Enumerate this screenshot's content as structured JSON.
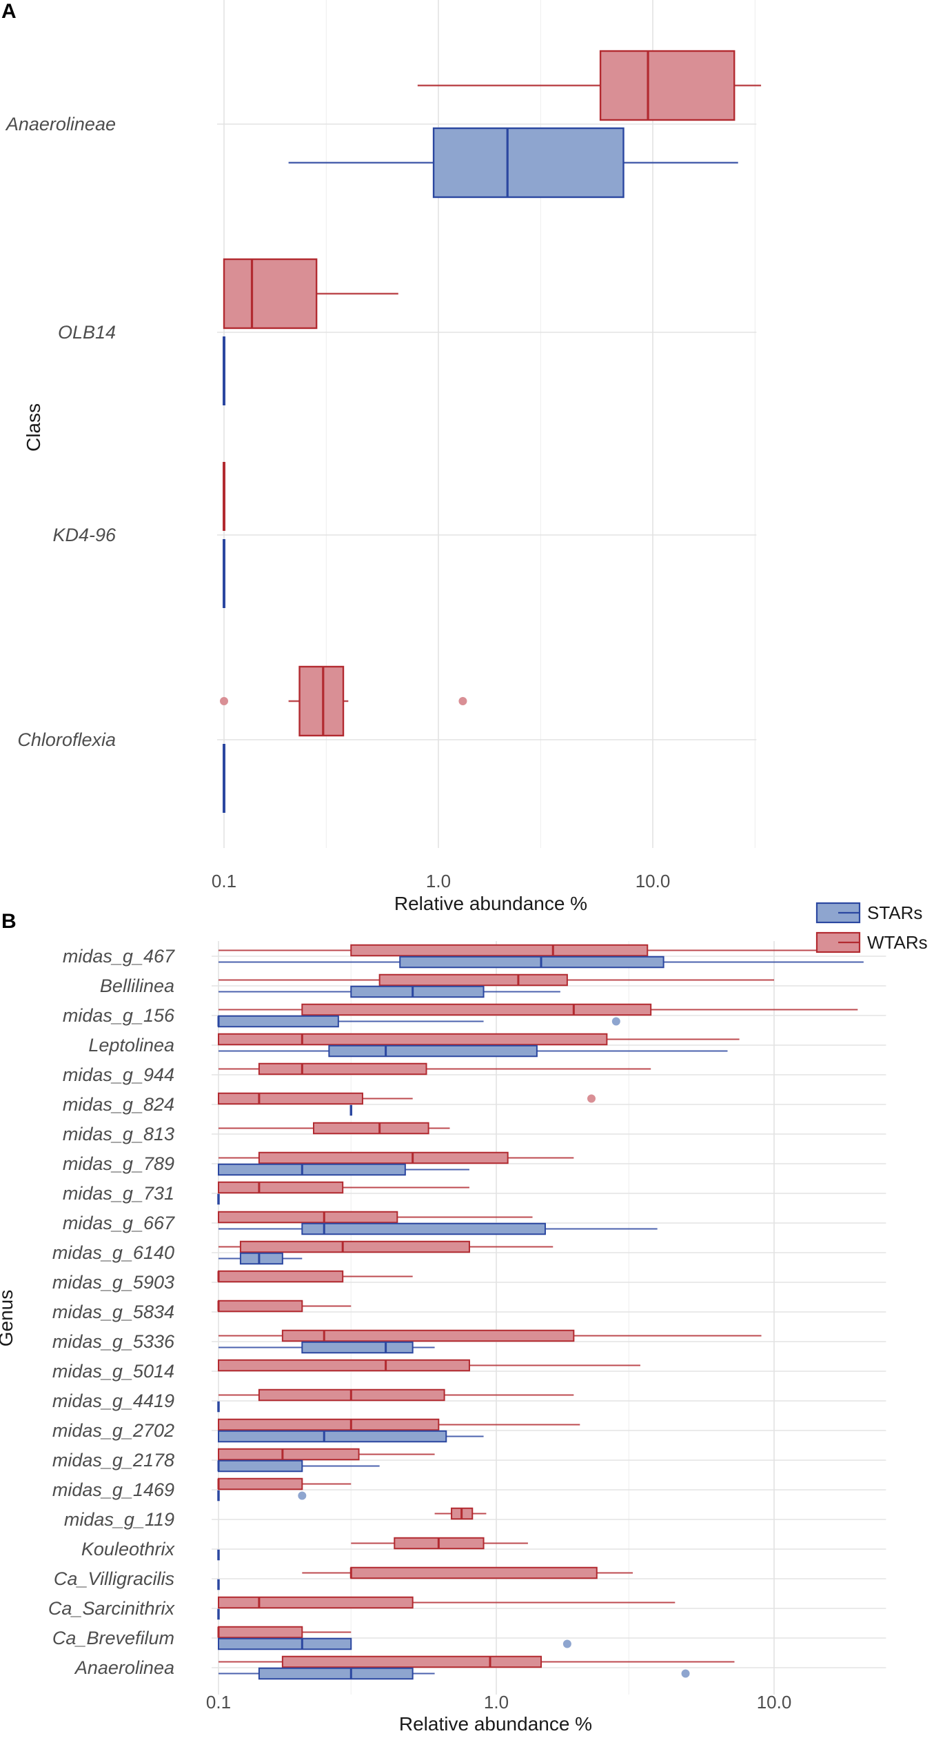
{
  "colors": {
    "STARs": {
      "fill": "#8ea5cf",
      "stroke": "#2b47a0"
    },
    "WTARs": {
      "fill": "#d98f95",
      "stroke": "#b22a30"
    }
  },
  "legend": {
    "items": [
      "STARs",
      "WTARs"
    ]
  },
  "chart_data": [
    {
      "panel": "A",
      "type": "boxplot",
      "orientation": "horizontal",
      "xscale": "log10",
      "xlim": [
        0.1,
        30
      ],
      "xticks": [
        0.1,
        1.0,
        10.0
      ],
      "xtick_labels": [
        "0.1",
        "1.0",
        "10.0"
      ],
      "xlabel": "Relative abundance %",
      "ylabel": "Class",
      "categories": [
        "Anaerolineae",
        "OLB14",
        "KD4-96",
        "Chloroflexia"
      ],
      "boxes": [
        {
          "category": "Anaerolineae",
          "group": "WTARs",
          "whisker_low": 0.8,
          "q1": 5.7,
          "median": 9.5,
          "q3": 24.0,
          "whisker_high": 32.0,
          "outliers": []
        },
        {
          "category": "Anaerolineae",
          "group": "STARs",
          "whisker_low": 0.2,
          "q1": 0.95,
          "median": 2.1,
          "q3": 7.3,
          "whisker_high": 25.0,
          "outliers": []
        },
        {
          "category": "OLB14",
          "group": "WTARs",
          "whisker_low": 0.1,
          "q1": 0.1,
          "median": 0.135,
          "q3": 0.27,
          "whisker_high": 0.65,
          "outliers": []
        },
        {
          "category": "OLB14",
          "group": "STARs",
          "whisker_low": 0.1,
          "q1": 0.1,
          "median": 0.1,
          "q3": 0.1,
          "whisker_high": 0.1,
          "outliers": []
        },
        {
          "category": "KD4-96",
          "group": "WTARs",
          "whisker_low": 0.1,
          "q1": 0.1,
          "median": 0.1,
          "q3": 0.1,
          "whisker_high": 0.1,
          "outliers": []
        },
        {
          "category": "KD4-96",
          "group": "STARs",
          "whisker_low": 0.1,
          "q1": 0.1,
          "median": 0.1,
          "q3": 0.1,
          "whisker_high": 0.1,
          "outliers": []
        },
        {
          "category": "Chloroflexia",
          "group": "WTARs",
          "whisker_low": 0.2,
          "q1": 0.225,
          "median": 0.29,
          "q3": 0.36,
          "whisker_high": 0.38,
          "outliers": [
            0.1,
            1.3
          ]
        },
        {
          "category": "Chloroflexia",
          "group": "STARs",
          "whisker_low": 0.1,
          "q1": 0.1,
          "median": 0.1,
          "q3": 0.1,
          "whisker_high": 0.1,
          "outliers": []
        }
      ]
    },
    {
      "panel": "B",
      "type": "boxplot",
      "orientation": "horizontal",
      "xscale": "log10",
      "xlim": [
        0.1,
        25
      ],
      "xticks": [
        0.1,
        1.0,
        10.0
      ],
      "xtick_labels": [
        "0.1",
        "1.0",
        "10.0"
      ],
      "xlabel": "Relative abundance %",
      "ylabel": "Genus",
      "categories": [
        "midas_g_467",
        "Bellilinea",
        "midas_g_156",
        "Leptolinea",
        "midas_g_944",
        "midas_g_824",
        "midas_g_813",
        "midas_g_789",
        "midas_g_731",
        "midas_g_667",
        "midas_g_6140",
        "midas_g_5903",
        "midas_g_5834",
        "midas_g_5336",
        "midas_g_5014",
        "midas_g_4419",
        "midas_g_2702",
        "midas_g_2178",
        "midas_g_1469",
        "midas_g_119",
        "Kouleothrix",
        "Ca_Villigracilis",
        "Ca_Sarcinithrix",
        "Ca_Brevefilum",
        "Anaerolinea"
      ],
      "boxes": [
        {
          "category": "midas_g_467",
          "group": "WTARs",
          "whisker_low": 0.1,
          "q1": 0.3,
          "median": 1.6,
          "q3": 3.5,
          "whisker_high": 18.5,
          "outliers": []
        },
        {
          "category": "midas_g_467",
          "group": "STARs",
          "whisker_low": 0.1,
          "q1": 0.45,
          "median": 1.45,
          "q3": 4.0,
          "whisker_high": 21.0,
          "outliers": []
        },
        {
          "category": "Bellilinea",
          "group": "WTARs",
          "whisker_low": 0.1,
          "q1": 0.38,
          "median": 1.2,
          "q3": 1.8,
          "whisker_high": 10.0,
          "outliers": []
        },
        {
          "category": "Bellilinea",
          "group": "STARs",
          "whisker_low": 0.1,
          "q1": 0.3,
          "median": 0.5,
          "q3": 0.9,
          "whisker_high": 1.7,
          "outliers": []
        },
        {
          "category": "midas_g_156",
          "group": "WTARs",
          "whisker_low": 0.1,
          "q1": 0.2,
          "median": 1.9,
          "q3": 3.6,
          "whisker_high": 20.0,
          "outliers": []
        },
        {
          "category": "midas_g_156",
          "group": "STARs",
          "whisker_low": 0.1,
          "q1": 0.1,
          "median": 0.1,
          "q3": 0.27,
          "whisker_high": 0.9,
          "outliers": [
            2.7
          ]
        },
        {
          "category": "Leptolinea",
          "group": "WTARs",
          "whisker_low": 0.1,
          "q1": 0.1,
          "median": 0.2,
          "q3": 2.5,
          "whisker_high": 7.5,
          "outliers": []
        },
        {
          "category": "Leptolinea",
          "group": "STARs",
          "whisker_low": 0.1,
          "q1": 0.25,
          "median": 0.4,
          "q3": 1.4,
          "whisker_high": 6.8,
          "outliers": []
        },
        {
          "category": "midas_g_944",
          "group": "WTARs",
          "whisker_low": 0.1,
          "q1": 0.14,
          "median": 0.2,
          "q3": 0.56,
          "whisker_high": 3.6,
          "outliers": []
        },
        {
          "category": "midas_g_824",
          "group": "WTARs",
          "whisker_low": 0.1,
          "q1": 0.1,
          "median": 0.14,
          "q3": 0.33,
          "whisker_high": 0.5,
          "outliers": [
            2.2
          ]
        },
        {
          "category": "midas_g_824",
          "group": "STARs",
          "whisker_low": 0.3,
          "q1": 0.3,
          "median": 0.3,
          "q3": 0.3,
          "whisker_high": 0.3,
          "outliers": []
        },
        {
          "category": "midas_g_813",
          "group": "WTARs",
          "whisker_low": 0.1,
          "q1": 0.22,
          "median": 0.38,
          "q3": 0.57,
          "whisker_high": 0.68,
          "outliers": []
        },
        {
          "category": "midas_g_789",
          "group": "WTARs",
          "whisker_low": 0.1,
          "q1": 0.14,
          "median": 0.5,
          "q3": 1.1,
          "whisker_high": 1.9,
          "outliers": []
        },
        {
          "category": "midas_g_789",
          "group": "STARs",
          "whisker_low": 0.1,
          "q1": 0.1,
          "median": 0.2,
          "q3": 0.47,
          "whisker_high": 0.8,
          "outliers": []
        },
        {
          "category": "midas_g_731",
          "group": "WTARs",
          "whisker_low": 0.1,
          "q1": 0.1,
          "median": 0.14,
          "q3": 0.28,
          "whisker_high": 0.8,
          "outliers": []
        },
        {
          "category": "midas_g_731",
          "group": "STARs",
          "whisker_low": 0.1,
          "q1": 0.1,
          "median": 0.1,
          "q3": 0.1,
          "whisker_high": 0.1,
          "outliers": []
        },
        {
          "category": "midas_g_667",
          "group": "WTARs",
          "whisker_low": 0.1,
          "q1": 0.1,
          "median": 0.24,
          "q3": 0.44,
          "whisker_high": 1.35,
          "outliers": []
        },
        {
          "category": "midas_g_667",
          "group": "STARs",
          "whisker_low": 0.1,
          "q1": 0.2,
          "median": 0.24,
          "q3": 1.5,
          "whisker_high": 3.8,
          "outliers": []
        },
        {
          "category": "midas_g_6140",
          "group": "WTARs",
          "whisker_low": 0.1,
          "q1": 0.12,
          "median": 0.28,
          "q3": 0.8,
          "whisker_high": 1.6,
          "outliers": []
        },
        {
          "category": "midas_g_6140",
          "group": "STARs",
          "whisker_low": 0.1,
          "q1": 0.12,
          "median": 0.14,
          "q3": 0.17,
          "whisker_high": 0.2,
          "outliers": []
        },
        {
          "category": "midas_g_5903",
          "group": "WTARs",
          "whisker_low": 0.1,
          "q1": 0.1,
          "median": 0.1,
          "q3": 0.28,
          "whisker_high": 0.5,
          "outliers": []
        },
        {
          "category": "midas_g_5834",
          "group": "WTARs",
          "whisker_low": 0.1,
          "q1": 0.1,
          "median": 0.1,
          "q3": 0.2,
          "whisker_high": 0.3,
          "outliers": []
        },
        {
          "category": "midas_g_5336",
          "group": "WTARs",
          "whisker_low": 0.1,
          "q1": 0.17,
          "median": 0.24,
          "q3": 1.9,
          "whisker_high": 9.0,
          "outliers": []
        },
        {
          "category": "midas_g_5336",
          "group": "STARs",
          "whisker_low": 0.1,
          "q1": 0.2,
          "median": 0.4,
          "q3": 0.5,
          "whisker_high": 0.6,
          "outliers": []
        },
        {
          "category": "midas_g_5014",
          "group": "WTARs",
          "whisker_low": 0.1,
          "q1": 0.1,
          "median": 0.4,
          "q3": 0.8,
          "whisker_high": 3.3,
          "outliers": []
        },
        {
          "category": "midas_g_4419",
          "group": "WTARs",
          "whisker_low": 0.1,
          "q1": 0.14,
          "median": 0.3,
          "q3": 0.65,
          "whisker_high": 1.9,
          "outliers": []
        },
        {
          "category": "midas_g_4419",
          "group": "STARs",
          "whisker_low": 0.1,
          "q1": 0.1,
          "median": 0.1,
          "q3": 0.1,
          "whisker_high": 0.1,
          "outliers": []
        },
        {
          "category": "midas_g_2702",
          "group": "WTARs",
          "whisker_low": 0.1,
          "q1": 0.1,
          "median": 0.3,
          "q3": 0.62,
          "whisker_high": 2.0,
          "outliers": []
        },
        {
          "category": "midas_g_2702",
          "group": "STARs",
          "whisker_low": 0.1,
          "q1": 0.1,
          "median": 0.24,
          "q3": 0.66,
          "whisker_high": 0.9,
          "outliers": []
        },
        {
          "category": "midas_g_2178",
          "group": "WTARs",
          "whisker_low": 0.1,
          "q1": 0.1,
          "median": 0.17,
          "q3": 0.32,
          "whisker_high": 0.6,
          "outliers": []
        },
        {
          "category": "midas_g_2178",
          "group": "STARs",
          "whisker_low": 0.1,
          "q1": 0.1,
          "median": 0.1,
          "q3": 0.2,
          "whisker_high": 0.38,
          "outliers": []
        },
        {
          "category": "midas_g_1469",
          "group": "WTARs",
          "whisker_low": 0.1,
          "q1": 0.1,
          "median": 0.1,
          "q3": 0.2,
          "whisker_high": 0.3,
          "outliers": []
        },
        {
          "category": "midas_g_1469",
          "group": "STARs",
          "whisker_low": 0.1,
          "q1": 0.1,
          "median": 0.1,
          "q3": 0.1,
          "whisker_high": 0.1,
          "outliers": [
            0.2
          ]
        },
        {
          "category": "midas_g_119",
          "group": "WTARs",
          "whisker_low": 0.6,
          "q1": 0.69,
          "median": 0.75,
          "q3": 0.82,
          "whisker_high": 0.92,
          "outliers": []
        },
        {
          "category": "Kouleothrix",
          "group": "WTARs",
          "whisker_low": 0.3,
          "q1": 0.43,
          "median": 0.62,
          "q3": 0.9,
          "whisker_high": 1.3,
          "outliers": []
        },
        {
          "category": "Kouleothrix",
          "group": "STARs",
          "whisker_low": 0.1,
          "q1": 0.1,
          "median": 0.1,
          "q3": 0.1,
          "whisker_high": 0.1,
          "outliers": []
        },
        {
          "category": "Ca_Villigracilis",
          "group": "WTARs",
          "whisker_low": 0.2,
          "q1": 0.3,
          "median": 0.3,
          "q3": 2.3,
          "whisker_high": 3.1,
          "outliers": []
        },
        {
          "category": "Ca_Villigracilis",
          "group": "STARs",
          "whisker_low": 0.1,
          "q1": 0.1,
          "median": 0.1,
          "q3": 0.1,
          "whisker_high": 0.1,
          "outliers": []
        },
        {
          "category": "Ca_Sarcinithrix",
          "group": "WTARs",
          "whisker_low": 0.1,
          "q1": 0.1,
          "median": 0.14,
          "q3": 0.5,
          "whisker_high": 4.4,
          "outliers": []
        },
        {
          "category": "Ca_Sarcinithrix",
          "group": "STARs",
          "whisker_low": 0.1,
          "q1": 0.1,
          "median": 0.1,
          "q3": 0.1,
          "whisker_high": 0.1,
          "outliers": []
        },
        {
          "category": "Ca_Brevefilum",
          "group": "WTARs",
          "whisker_low": 0.1,
          "q1": 0.1,
          "median": 0.1,
          "q3": 0.2,
          "whisker_high": 0.3,
          "outliers": []
        },
        {
          "category": "Ca_Brevefilum",
          "group": "STARs",
          "whisker_low": 0.1,
          "q1": 0.1,
          "median": 0.2,
          "q3": 0.3,
          "whisker_high": 0.3,
          "outliers": [
            1.8
          ]
        },
        {
          "category": "Anaerolinea",
          "group": "WTARs",
          "whisker_low": 0.1,
          "q1": 0.17,
          "median": 0.95,
          "q3": 1.45,
          "whisker_high": 7.2,
          "outliers": []
        },
        {
          "category": "Anaerolinea",
          "group": "STARs",
          "whisker_low": 0.1,
          "q1": 0.14,
          "median": 0.3,
          "q3": 0.5,
          "whisker_high": 0.6,
          "outliers": [
            4.8
          ]
        }
      ]
    }
  ]
}
